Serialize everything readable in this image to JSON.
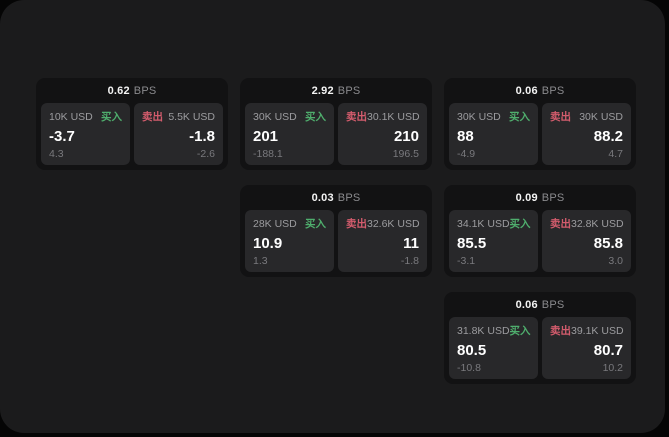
{
  "labels": {
    "bps_unit": "BPS",
    "buy": "买入",
    "sell": "卖出"
  },
  "colors": {
    "buy_green": "#4fae6d",
    "sell_red": "#d45c6d",
    "panel_bg": "#1b1b1c",
    "card_bg": "#121213",
    "tile_bg": "#28282a"
  },
  "cards": [
    {
      "row": 1,
      "col": 1,
      "bps": "0.62",
      "buy": {
        "amount": "10K USD",
        "value": "-3.7",
        "delta": "4.3"
      },
      "sell": {
        "amount": "5.5K USD",
        "value": "-1.8",
        "delta": "-2.6"
      }
    },
    {
      "row": 1,
      "col": 2,
      "bps": "2.92",
      "buy": {
        "amount": "30K USD",
        "value": "201",
        "delta": "-188.1"
      },
      "sell": {
        "amount": "30.1K USD",
        "value": "210",
        "delta": "196.5"
      }
    },
    {
      "row": 1,
      "col": 3,
      "bps": "0.06",
      "buy": {
        "amount": "30K USD",
        "value": "88",
        "delta": "-4.9"
      },
      "sell": {
        "amount": "30K USD",
        "value": "88.2",
        "delta": "4.7"
      }
    },
    {
      "row": 2,
      "col": 2,
      "bps": "0.03",
      "buy": {
        "amount": "28K USD",
        "value": "10.9",
        "delta": "1.3"
      },
      "sell": {
        "amount": "32.6K USD",
        "value": "11",
        "delta": "-1.8"
      }
    },
    {
      "row": 2,
      "col": 3,
      "bps": "0.09",
      "buy": {
        "amount": "34.1K USD",
        "value": "85.5",
        "delta": "-3.1"
      },
      "sell": {
        "amount": "32.8K USD",
        "value": "85.8",
        "delta": "3.0"
      }
    },
    {
      "row": 3,
      "col": 3,
      "bps": "0.06",
      "buy": {
        "amount": "31.8K USD",
        "value": "80.5",
        "delta": "-10.8"
      },
      "sell": {
        "amount": "39.1K USD",
        "value": "80.7",
        "delta": "10.2"
      }
    }
  ]
}
